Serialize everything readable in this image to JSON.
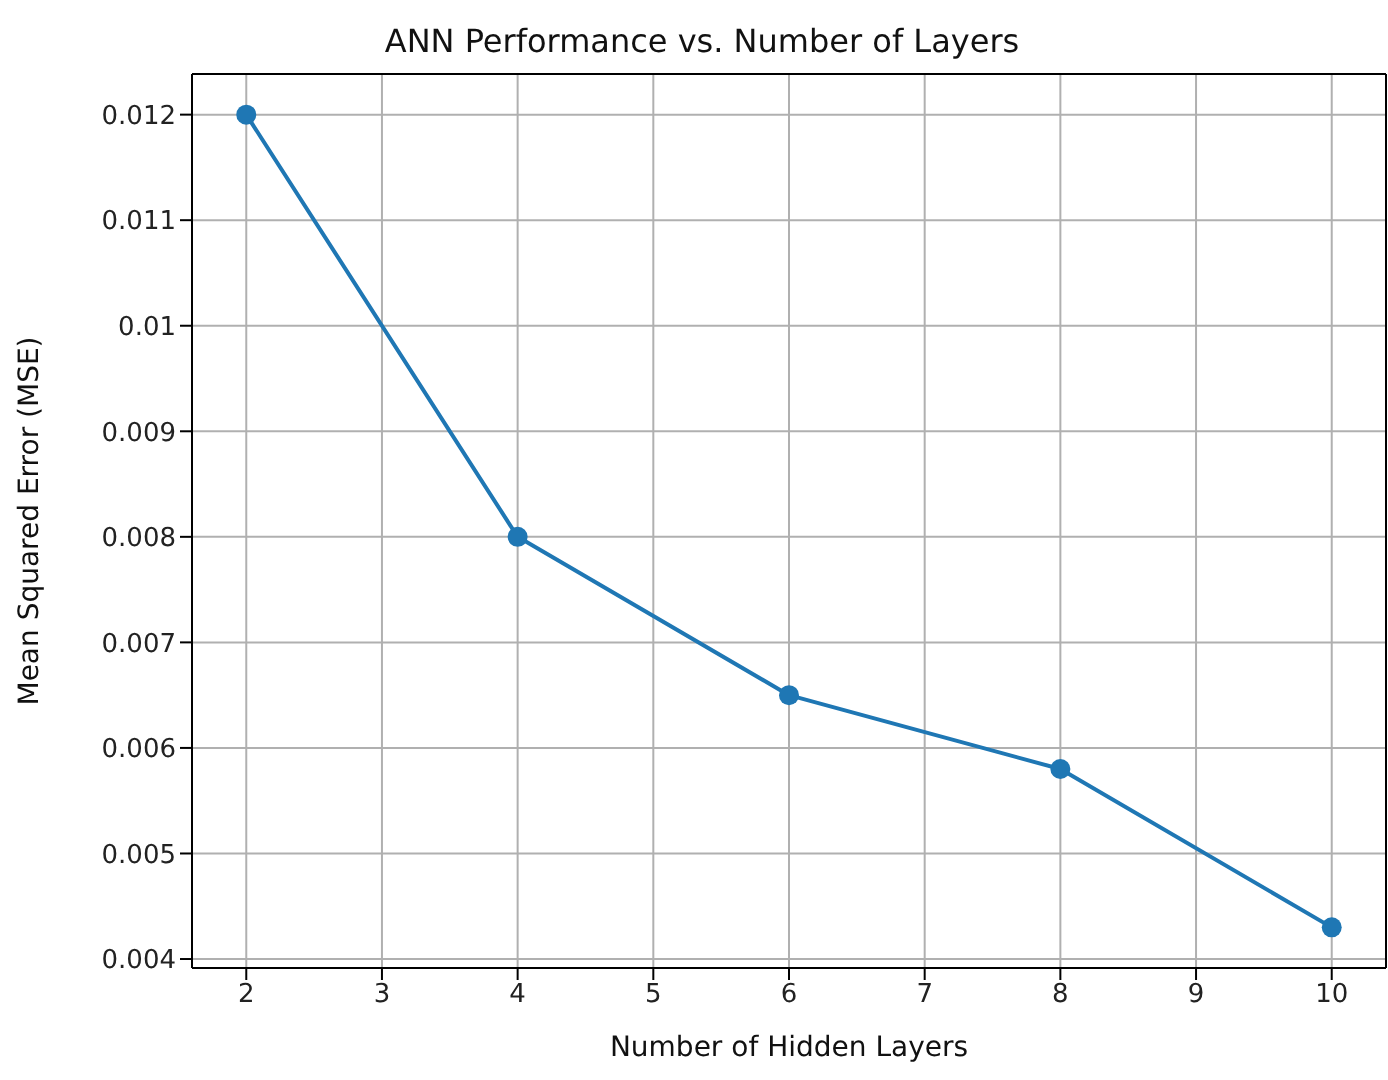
{
  "chart_data": {
    "type": "line",
    "title": "ANN Performance vs. Number of Layers",
    "xlabel": "Number of Hidden Layers",
    "ylabel": "Mean Squared Error (MSE)",
    "x": [
      2,
      4,
      6,
      8,
      10
    ],
    "series": [
      {
        "color": "#1f77b4",
        "values": [
          0.012,
          0.008,
          0.0065,
          0.0058,
          0.0043
        ]
      }
    ],
    "xlim": [
      1.6,
      10.4
    ],
    "xticks": [
      2,
      3,
      4,
      5,
      6,
      7,
      8,
      9,
      10
    ],
    "ylim": [
      0.003915,
      0.012385
    ],
    "yticks": [
      0.004,
      0.005,
      0.006,
      0.007,
      0.008,
      0.009,
      0.01,
      0.011,
      0.012
    ],
    "grid": true,
    "marker": "circle",
    "line_style": "solid"
  }
}
